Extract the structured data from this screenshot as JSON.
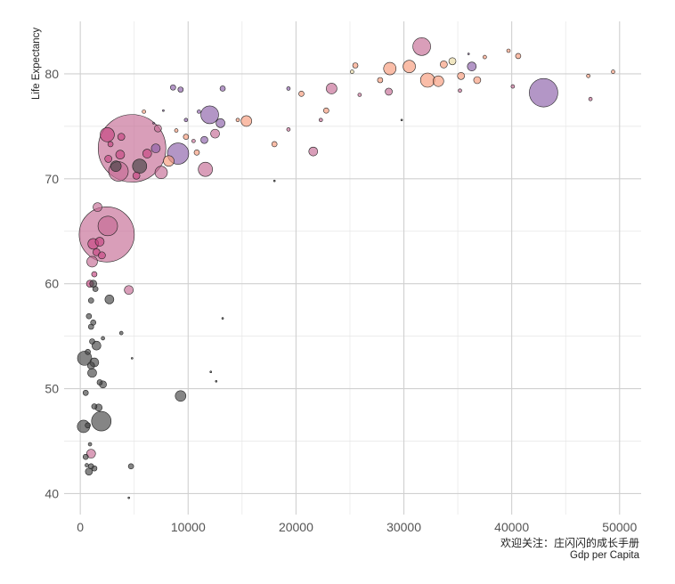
{
  "chart_data": {
    "type": "scatter",
    "title": "",
    "xlabel": "Gdp per Capita",
    "ylabel": "Life Expectancy",
    "caption": "欢迎关注：庄闪闪的成长手册",
    "xlim": [
      -1500,
      52000
    ],
    "ylim": [
      38,
      85
    ],
    "xticks": [
      0,
      10000,
      20000,
      30000,
      40000,
      50000
    ],
    "yticks": [
      40,
      50,
      60,
      70,
      80
    ],
    "grid": true,
    "legend": "none",
    "colors": {
      "Africa": "#444444",
      "Americas": "#c4437f",
      "Asia": "#c56a93",
      "Europe": "#f8997a",
      "Oceania": "#e8d8a0",
      "PurpleGroup": "#8b5ea8"
    },
    "points": [
      {
        "x": 4797,
        "y": 72.9,
        "r": 38,
        "g": "Asia"
      },
      {
        "x": 2452,
        "y": 64.7,
        "r": 31,
        "g": "Asia"
      },
      {
        "x": 42952,
        "y": 78.2,
        "r": 16,
        "g": "PurpleGroup"
      },
      {
        "x": 9065,
        "y": 72.4,
        "r": 12,
        "g": "PurpleGroup"
      },
      {
        "x": 12000,
        "y": 76.1,
        "r": 10,
        "g": "PurpleGroup"
      },
      {
        "x": 31656,
        "y": 82.6,
        "r": 10,
        "g": "Asia"
      },
      {
        "x": 2550,
        "y": 65.5,
        "r": 11,
        "g": "Asia"
      },
      {
        "x": 3540,
        "y": 70.7,
        "r": 11,
        "g": "Asia"
      },
      {
        "x": 2500,
        "y": 74.2,
        "r": 8,
        "g": "Americas"
      },
      {
        "x": 1950,
        "y": 46.9,
        "r": 11,
        "g": "Africa"
      },
      {
        "x": 400,
        "y": 52.9,
        "r": 8,
        "g": "Africa"
      },
      {
        "x": 300,
        "y": 46.4,
        "r": 7,
        "g": "Africa"
      },
      {
        "x": 5500,
        "y": 71.2,
        "r": 8,
        "g": "Africa"
      },
      {
        "x": 3300,
        "y": 71.2,
        "r": 6,
        "g": "Africa"
      },
      {
        "x": 9300,
        "y": 49.3,
        "r": 6,
        "g": "Africa"
      },
      {
        "x": 32200,
        "y": 79.4,
        "r": 8,
        "g": "Europe"
      },
      {
        "x": 30500,
        "y": 80.7,
        "r": 7,
        "g": "Europe"
      },
      {
        "x": 28700,
        "y": 80.5,
        "r": 7,
        "g": "Europe"
      },
      {
        "x": 33200,
        "y": 79.3,
        "r": 6,
        "g": "Europe"
      },
      {
        "x": 23300,
        "y": 78.6,
        "r": 6,
        "g": "Asia"
      },
      {
        "x": 11600,
        "y": 70.9,
        "r": 8,
        "g": "Asia"
      },
      {
        "x": 7500,
        "y": 70.6,
        "r": 7,
        "g": "Asia"
      },
      {
        "x": 8200,
        "y": 71.7,
        "r": 6,
        "g": "Europe"
      },
      {
        "x": 15400,
        "y": 75.5,
        "r": 6,
        "g": "Europe"
      },
      {
        "x": 36300,
        "y": 80.7,
        "r": 5,
        "g": "PurpleGroup"
      },
      {
        "x": 13000,
        "y": 75.3,
        "r": 5,
        "g": "PurpleGroup"
      },
      {
        "x": 7000,
        "y": 72.9,
        "r": 5,
        "g": "PurpleGroup"
      },
      {
        "x": 11500,
        "y": 73.7,
        "r": 4,
        "g": "PurpleGroup"
      },
      {
        "x": 7200,
        "y": 74.8,
        "r": 4,
        "g": "Asia"
      },
      {
        "x": 12500,
        "y": 74.3,
        "r": 5,
        "g": "Asia"
      },
      {
        "x": 21600,
        "y": 72.6,
        "r": 5,
        "g": "Asia"
      },
      {
        "x": 1600,
        "y": 67.3,
        "r": 5,
        "g": "Asia"
      },
      {
        "x": 1100,
        "y": 62.1,
        "r": 6,
        "g": "Asia"
      },
      {
        "x": 4500,
        "y": 59.4,
        "r": 5,
        "g": "Asia"
      },
      {
        "x": 1000,
        "y": 43.8,
        "r": 5,
        "g": "Asia"
      },
      {
        "x": 1200,
        "y": 63.8,
        "r": 6,
        "g": "Americas"
      },
      {
        "x": 3700,
        "y": 72.3,
        "r": 5,
        "g": "Americas"
      },
      {
        "x": 3800,
        "y": 74.0,
        "r": 4,
        "g": "Americas"
      },
      {
        "x": 6200,
        "y": 72.4,
        "r": 5,
        "g": "Americas"
      },
      {
        "x": 2600,
        "y": 71.9,
        "r": 4,
        "g": "Americas"
      },
      {
        "x": 5200,
        "y": 70.3,
        "r": 4,
        "g": "Americas"
      },
      {
        "x": 2800,
        "y": 73.3,
        "r": 3,
        "g": "Americas"
      },
      {
        "x": 1800,
        "y": 64.0,
        "r": 5,
        "g": "Americas"
      },
      {
        "x": 1500,
        "y": 63.0,
        "r": 4,
        "g": "Americas"
      },
      {
        "x": 2000,
        "y": 62.7,
        "r": 4,
        "g": "Americas"
      },
      {
        "x": 900,
        "y": 60.0,
        "r": 4,
        "g": "Americas"
      },
      {
        "x": 1300,
        "y": 60.9,
        "r": 3,
        "g": "Americas"
      },
      {
        "x": 28600,
        "y": 78.3,
        "r": 4,
        "g": "Asia"
      },
      {
        "x": 40600,
        "y": 81.7,
        "r": 3,
        "g": "Europe"
      },
      {
        "x": 35300,
        "y": 79.8,
        "r": 4,
        "g": "Europe"
      },
      {
        "x": 33700,
        "y": 80.9,
        "r": 4,
        "g": "Europe"
      },
      {
        "x": 36800,
        "y": 79.4,
        "r": 4,
        "g": "Europe"
      },
      {
        "x": 27800,
        "y": 79.4,
        "r": 3,
        "g": "Europe"
      },
      {
        "x": 25500,
        "y": 80.8,
        "r": 3,
        "g": "Europe"
      },
      {
        "x": 22800,
        "y": 76.5,
        "r": 3,
        "g": "Europe"
      },
      {
        "x": 20500,
        "y": 78.1,
        "r": 3,
        "g": "Europe"
      },
      {
        "x": 18000,
        "y": 73.3,
        "r": 3,
        "g": "Europe"
      },
      {
        "x": 14600,
        "y": 75.6,
        "r": 2,
        "g": "Europe"
      },
      {
        "x": 10800,
        "y": 72.5,
        "r": 3,
        "g": "Europe"
      },
      {
        "x": 9800,
        "y": 74.0,
        "r": 3,
        "g": "Europe"
      },
      {
        "x": 8900,
        "y": 74.6,
        "r": 2,
        "g": "Europe"
      },
      {
        "x": 5900,
        "y": 76.4,
        "r": 2,
        "g": "Europe"
      },
      {
        "x": 47100,
        "y": 79.8,
        "r": 2,
        "g": "Europe"
      },
      {
        "x": 49400,
        "y": 80.2,
        "r": 2,
        "g": "Europe"
      },
      {
        "x": 39700,
        "y": 82.2,
        "r": 2,
        "g": "Europe"
      },
      {
        "x": 37500,
        "y": 81.6,
        "r": 2,
        "g": "Europe"
      },
      {
        "x": 34500,
        "y": 81.2,
        "r": 4,
        "g": "Oceania"
      },
      {
        "x": 25200,
        "y": 80.2,
        "r": 2,
        "g": "Oceania"
      },
      {
        "x": 47300,
        "y": 77.6,
        "r": 2,
        "g": "Asia"
      },
      {
        "x": 40100,
        "y": 78.8,
        "r": 2,
        "g": "Asia"
      },
      {
        "x": 35200,
        "y": 78.4,
        "r": 2,
        "g": "Asia"
      },
      {
        "x": 25900,
        "y": 78.0,
        "r": 2,
        "g": "Asia"
      },
      {
        "x": 22300,
        "y": 75.6,
        "r": 2,
        "g": "Asia"
      },
      {
        "x": 19300,
        "y": 74.7,
        "r": 2,
        "g": "Asia"
      },
      {
        "x": 10500,
        "y": 73.6,
        "r": 2,
        "g": "Asia"
      },
      {
        "x": 8600,
        "y": 78.7,
        "r": 3,
        "g": "PurpleGroup"
      },
      {
        "x": 9300,
        "y": 78.5,
        "r": 3,
        "g": "PurpleGroup"
      },
      {
        "x": 13200,
        "y": 78.6,
        "r": 3,
        "g": "PurpleGroup"
      },
      {
        "x": 19300,
        "y": 78.6,
        "r": 2,
        "g": "PurpleGroup"
      },
      {
        "x": 36000,
        "y": 81.9,
        "r": 1,
        "g": "PurpleGroup"
      },
      {
        "x": 9800,
        "y": 75.6,
        "r": 2,
        "g": "PurpleGroup"
      },
      {
        "x": 11000,
        "y": 76.4,
        "r": 2,
        "g": "PurpleGroup"
      },
      {
        "x": 7700,
        "y": 76.5,
        "r": 1,
        "g": "PurpleGroup"
      },
      {
        "x": 6800,
        "y": 75.3,
        "r": 1,
        "g": "PurpleGroup"
      },
      {
        "x": 29800,
        "y": 75.6,
        "r": 1,
        "g": "Africa"
      },
      {
        "x": 18000,
        "y": 69.8,
        "r": 1,
        "g": "Africa"
      },
      {
        "x": 13200,
        "y": 56.7,
        "r": 1,
        "g": "Africa"
      },
      {
        "x": 12100,
        "y": 51.6,
        "r": 1,
        "g": "Africa"
      },
      {
        "x": 12600,
        "y": 50.7,
        "r": 1,
        "g": "Africa"
      },
      {
        "x": 4800,
        "y": 52.9,
        "r": 1,
        "g": "Africa"
      },
      {
        "x": 4500,
        "y": 39.6,
        "r": 1,
        "g": "Africa"
      },
      {
        "x": 4700,
        "y": 42.6,
        "r": 3,
        "g": "Africa"
      },
      {
        "x": 2700,
        "y": 58.5,
        "r": 5,
        "g": "Africa"
      },
      {
        "x": 3800,
        "y": 55.3,
        "r": 2,
        "g": "Africa"
      },
      {
        "x": 2100,
        "y": 54.8,
        "r": 2,
        "g": "Africa"
      },
      {
        "x": 1200,
        "y": 60.0,
        "r": 4,
        "g": "Africa"
      },
      {
        "x": 1400,
        "y": 59.5,
        "r": 3,
        "g": "Africa"
      },
      {
        "x": 1000,
        "y": 58.4,
        "r": 3,
        "g": "Africa"
      },
      {
        "x": 800,
        "y": 56.9,
        "r": 3,
        "g": "Africa"
      },
      {
        "x": 1200,
        "y": 56.3,
        "r": 3,
        "g": "Africa"
      },
      {
        "x": 1000,
        "y": 55.9,
        "r": 3,
        "g": "Africa"
      },
      {
        "x": 1100,
        "y": 54.5,
        "r": 3,
        "g": "Africa"
      },
      {
        "x": 1500,
        "y": 54.1,
        "r": 5,
        "g": "Africa"
      },
      {
        "x": 700,
        "y": 53.5,
        "r": 3,
        "g": "Africa"
      },
      {
        "x": 1300,
        "y": 52.5,
        "r": 5,
        "g": "Africa"
      },
      {
        "x": 1000,
        "y": 52.2,
        "r": 4,
        "g": "Africa"
      },
      {
        "x": 1100,
        "y": 51.5,
        "r": 5,
        "g": "Africa"
      },
      {
        "x": 1800,
        "y": 50.6,
        "r": 3,
        "g": "Africa"
      },
      {
        "x": 2100,
        "y": 50.4,
        "r": 4,
        "g": "Africa"
      },
      {
        "x": 500,
        "y": 49.6,
        "r": 3,
        "g": "Africa"
      },
      {
        "x": 1300,
        "y": 48.3,
        "r": 3,
        "g": "Africa"
      },
      {
        "x": 1700,
        "y": 48.2,
        "r": 4,
        "g": "Africa"
      },
      {
        "x": 700,
        "y": 46.5,
        "r": 3,
        "g": "Africa"
      },
      {
        "x": 900,
        "y": 44.7,
        "r": 2,
        "g": "Africa"
      },
      {
        "x": 500,
        "y": 43.5,
        "r": 3,
        "g": "Africa"
      },
      {
        "x": 800,
        "y": 42.1,
        "r": 4,
        "g": "Africa"
      },
      {
        "x": 1300,
        "y": 42.4,
        "r": 3,
        "g": "Africa"
      },
      {
        "x": 1000,
        "y": 42.6,
        "r": 3,
        "g": "Africa"
      },
      {
        "x": 600,
        "y": 42.7,
        "r": 2,
        "g": "Africa"
      }
    ]
  }
}
